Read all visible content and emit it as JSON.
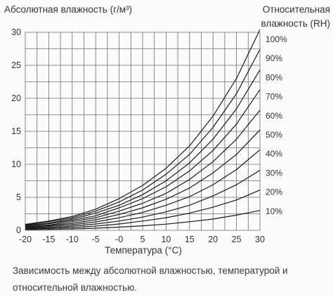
{
  "colors": {
    "grid": "#6e6e6e",
    "curve": "#1a1a1a",
    "text": "#333333",
    "background": "#fbfbfb"
  },
  "chart_data": {
    "type": "line",
    "title": "Абсолютная влажность (г/м³)",
    "right_title_line1": "Относительная",
    "right_title_line2": "влажность (RH)",
    "xlabel": "Температура (°C)",
    "ylabel": "Абсолютная влажность (г/м³)",
    "caption": "Зависимость между абсолютной влажностью, температурой и относительной влажностью.",
    "xlim": [
      -20,
      30
    ],
    "ylim": [
      0,
      30
    ],
    "grid": true,
    "x_ticks": [
      "-20",
      "-15",
      "-10",
      "-5",
      "-0",
      "5",
      "10",
      "15",
      "20",
      "25",
      "30"
    ],
    "y_ticks": [
      "0",
      "5",
      "10",
      "15",
      "20",
      "25",
      "30"
    ],
    "x": [
      -20,
      -15,
      -10,
      -5,
      0,
      5,
      10,
      15,
      20,
      25,
      30
    ],
    "series": [
      {
        "name": "100%",
        "values": [
          0.9,
          1.4,
          2.1,
          3.2,
          4.8,
          6.8,
          9.4,
          12.8,
          17.3,
          23.0,
          30.4
        ]
      },
      {
        "name": "90%",
        "values": [
          0.8,
          1.3,
          1.9,
          2.9,
          4.3,
          6.1,
          8.5,
          11.5,
          15.6,
          20.7,
          27.4
        ]
      },
      {
        "name": "80%",
        "values": [
          0.7,
          1.1,
          1.7,
          2.6,
          3.8,
          5.4,
          7.5,
          10.2,
          13.8,
          18.4,
          24.3
        ]
      },
      {
        "name": "70%",
        "values": [
          0.6,
          1.0,
          1.5,
          2.2,
          3.4,
          4.8,
          6.6,
          9.0,
          12.1,
          16.1,
          21.3
        ]
      },
      {
        "name": "60%",
        "values": [
          0.5,
          0.8,
          1.3,
          1.9,
          2.9,
          4.1,
          5.6,
          7.7,
          10.4,
          13.8,
          18.2
        ]
      },
      {
        "name": "50%",
        "values": [
          0.45,
          0.7,
          1.05,
          1.6,
          2.4,
          3.4,
          4.7,
          6.4,
          8.7,
          11.5,
          15.2
        ]
      },
      {
        "name": "40%",
        "values": [
          0.36,
          0.56,
          0.84,
          1.28,
          1.9,
          2.7,
          3.8,
          5.1,
          6.9,
          9.2,
          12.2
        ]
      },
      {
        "name": "30%",
        "values": [
          0.27,
          0.42,
          0.63,
          0.96,
          1.4,
          2.0,
          2.8,
          3.8,
          5.2,
          6.9,
          9.1
        ]
      },
      {
        "name": "20%",
        "values": [
          0.18,
          0.28,
          0.42,
          0.64,
          0.96,
          1.4,
          1.9,
          2.6,
          3.5,
          4.6,
          6.1
        ]
      },
      {
        "name": "10%",
        "values": [
          0.09,
          0.14,
          0.21,
          0.32,
          0.48,
          0.68,
          0.94,
          1.3,
          1.7,
          2.3,
          3.0
        ]
      }
    ]
  }
}
